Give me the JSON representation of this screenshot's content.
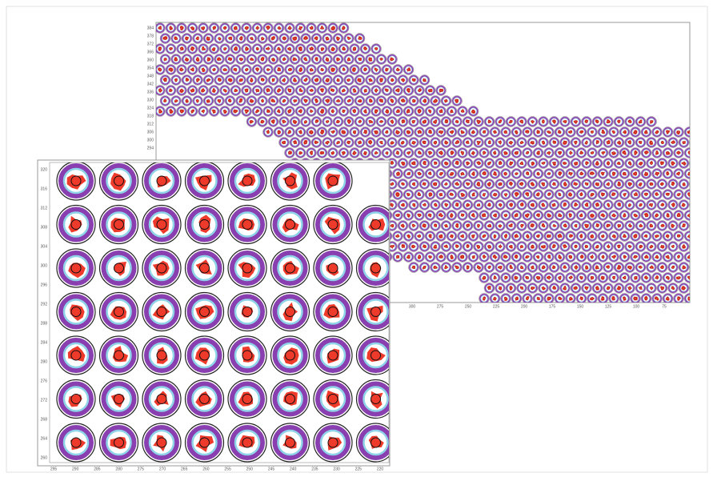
{
  "back_plot": {
    "x_tick_labels": [
      "300",
      "275",
      "250",
      "225",
      "200",
      "175",
      "150",
      "125",
      "100",
      "75"
    ],
    "y_tick_labels": [
      "384",
      "378",
      "372",
      "366",
      "360",
      "354",
      "348",
      "342",
      "336",
      "330",
      "324",
      "318",
      "312",
      "306",
      "300",
      "294"
    ]
  },
  "inset_plot": {
    "x_tick_labels": [
      "295",
      "290",
      "285",
      "280",
      "275",
      "270",
      "265",
      "260",
      "255",
      "250",
      "245",
      "240",
      "235",
      "230",
      "225",
      "220"
    ],
    "y_tick_labels": [
      "320",
      "316",
      "312",
      "308",
      "304",
      "300",
      "296",
      "292",
      "288",
      "284",
      "280",
      "276",
      "272",
      "268",
      "264",
      "260"
    ]
  }
}
